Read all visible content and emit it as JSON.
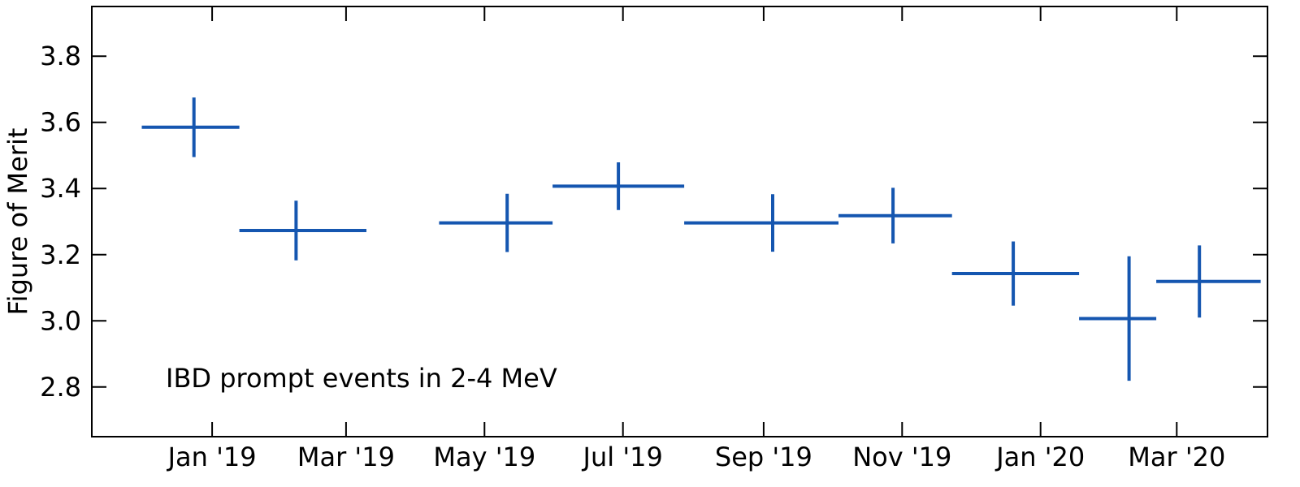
{
  "chart_data": {
    "type": "scatter",
    "title": "",
    "xlabel": "",
    "ylabel": "Figure of Merit",
    "annotation": "IBD prompt events in 2-4 MeV",
    "grid": false,
    "xlim": [
      "2018-11-09",
      "2020-04-10"
    ],
    "ylim": [
      2.65,
      3.95
    ],
    "x_ticks": [
      {
        "date": "2019-01-01",
        "label": "Jan '19"
      },
      {
        "date": "2019-03-01",
        "label": "Mar '19"
      },
      {
        "date": "2019-05-01",
        "label": "May '19"
      },
      {
        "date": "2019-07-01",
        "label": "Jul '19"
      },
      {
        "date": "2019-09-01",
        "label": "Sep '19"
      },
      {
        "date": "2019-11-01",
        "label": "Nov '19"
      },
      {
        "date": "2020-01-01",
        "label": "Jan '20"
      },
      {
        "date": "2020-03-01",
        "label": "Mar '20"
      }
    ],
    "y_ticks": [
      {
        "value": 2.8,
        "label": "2.8"
      },
      {
        "value": 3.0,
        "label": "3.0"
      },
      {
        "value": 3.2,
        "label": "3.2"
      },
      {
        "value": 3.4,
        "label": "3.4"
      },
      {
        "value": 3.6,
        "label": "3.6"
      },
      {
        "value": 3.8,
        "label": "3.8"
      }
    ],
    "series": [
      {
        "color": "#1556b0",
        "points": [
          {
            "x_start": "2018-12-01",
            "x_end": "2019-01-13",
            "x_center": "2018-12-24",
            "y": 3.585,
            "yerr": 0.09
          },
          {
            "x_start": "2019-01-13",
            "x_end": "2019-03-10",
            "x_center": "2019-02-07",
            "y": 3.273,
            "yerr": 0.09
          },
          {
            "x_start": "2019-04-11",
            "x_end": "2019-05-31",
            "x_center": "2019-05-11",
            "y": 3.296,
            "yerr": 0.088
          },
          {
            "x_start": "2019-05-31",
            "x_end": "2019-07-28",
            "x_center": "2019-06-29",
            "y": 3.407,
            "yerr": 0.072
          },
          {
            "x_start": "2019-07-28",
            "x_end": "2019-10-04",
            "x_center": "2019-09-05",
            "y": 3.296,
            "yerr": 0.087
          },
          {
            "x_start": "2019-10-04",
            "x_end": "2019-11-23",
            "x_center": "2019-10-28",
            "y": 3.318,
            "yerr": 0.084
          },
          {
            "x_start": "2019-11-23",
            "x_end": "2020-01-18",
            "x_center": "2019-12-20",
            "y": 3.143,
            "yerr": 0.097
          },
          {
            "x_start": "2020-01-18",
            "x_end": "2020-02-21",
            "x_center": "2020-02-09",
            "y": 3.007,
            "yerr": 0.188
          },
          {
            "x_start": "2020-02-21",
            "x_end": "2020-04-07",
            "x_center": "2020-03-11",
            "y": 3.119,
            "yerr": 0.109
          }
        ]
      }
    ]
  }
}
